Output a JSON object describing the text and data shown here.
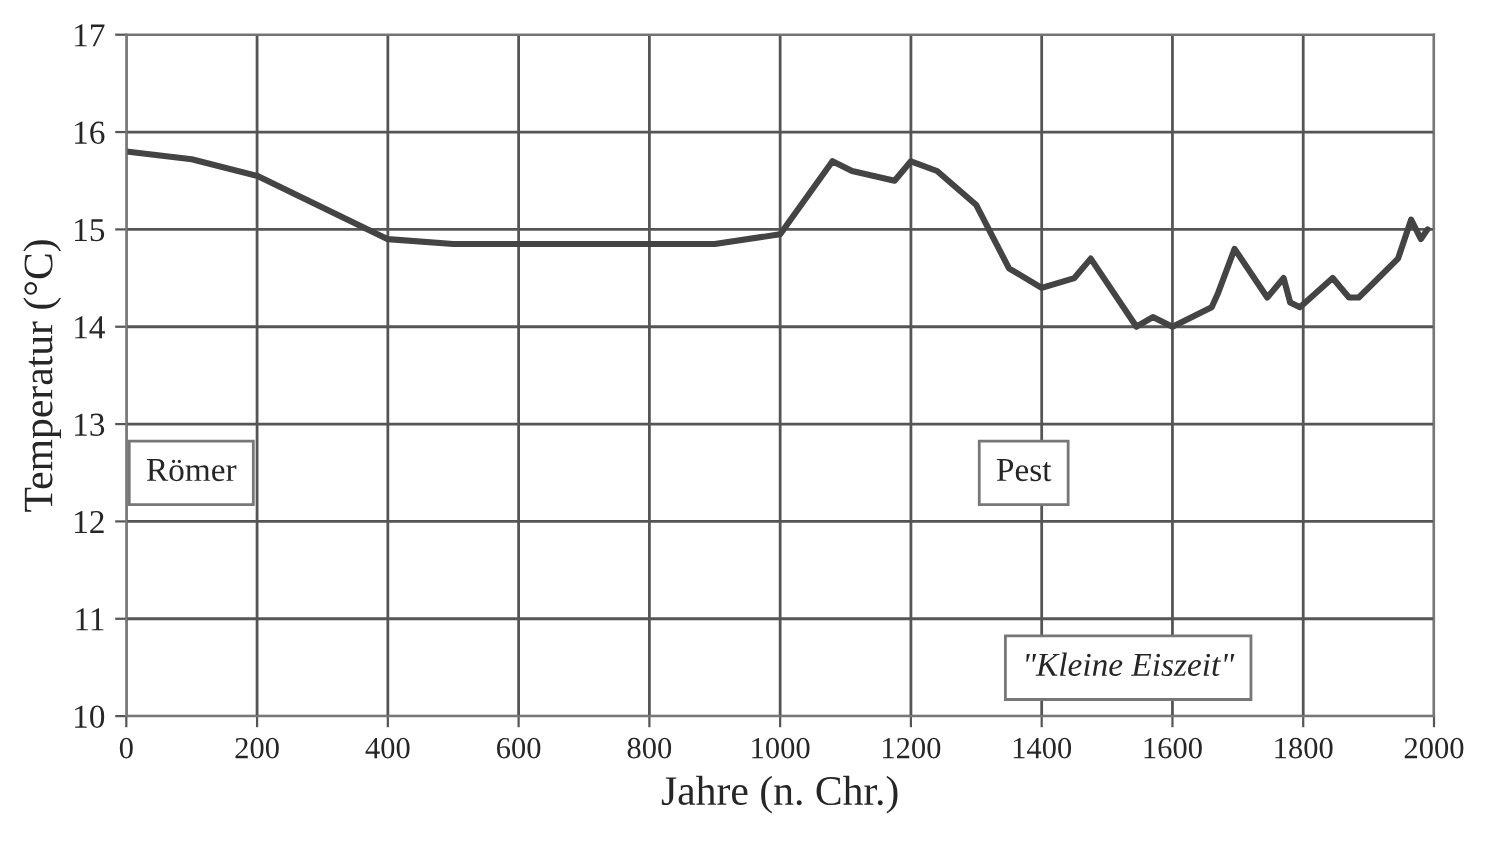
{
  "chart_data": {
    "type": "line",
    "xlabel": "Jahre (n. Chr.)",
    "ylabel": "Temperatur (°C)",
    "x": [
      0,
      100,
      200,
      400,
      500,
      900,
      1000,
      1080,
      1110,
      1175,
      1200,
      1240,
      1300,
      1350,
      1400,
      1450,
      1475,
      1545,
      1570,
      1600,
      1660,
      1670,
      1695,
      1745,
      1770,
      1780,
      1795,
      1845,
      1870,
      1885,
      1945,
      1965,
      1980,
      1990
    ],
    "series": [
      {
        "color": "#444444",
        "values": [
          15.8,
          15.72,
          15.55,
          14.9,
          14.85,
          14.85,
          14.95,
          15.7,
          15.6,
          15.5,
          15.7,
          15.6,
          15.25,
          14.6,
          14.4,
          14.5,
          14.7,
          14.0,
          14.1,
          14.0,
          14.2,
          14.35,
          14.8,
          14.3,
          14.5,
          14.25,
          14.2,
          14.5,
          14.3,
          14.3,
          14.7,
          15.1,
          14.9,
          15.0
        ]
      }
    ],
    "xlim": [
      0,
      2000
    ],
    "ylim": [
      10,
      17
    ],
    "xticks": [
      0,
      200,
      400,
      600,
      800,
      1000,
      1200,
      1400,
      1600,
      1800,
      2000
    ],
    "yticks": [
      10,
      11,
      12,
      13,
      14,
      15,
      16,
      17
    ],
    "grid": true,
    "line_style": "solid",
    "marker": "none",
    "annotations": [
      "Römer",
      "Pest",
      "\"Kleine Eiszeit\""
    ]
  }
}
